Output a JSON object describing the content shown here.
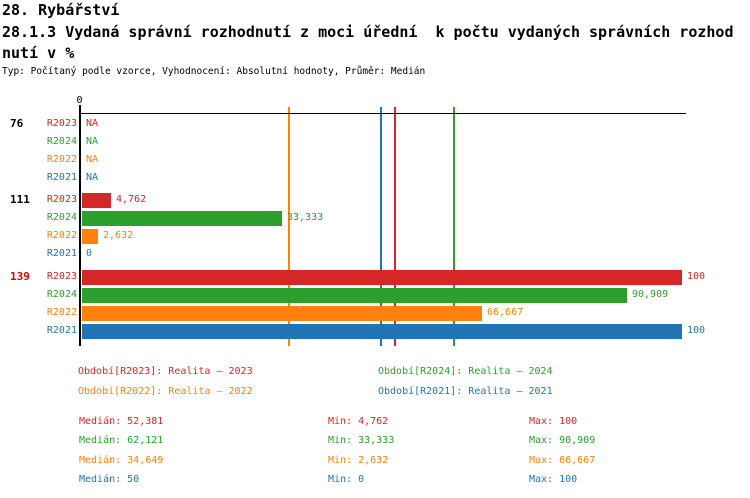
{
  "header": {
    "title_line1": "28. Rybářství",
    "title_line2": "28.1.3 Vydaná správní rozhodnutí z moci úřední  k počtu vydaných správních rozhod",
    "title_line3": "nutí v %",
    "meta": "Typ: Počítaný podle vzorce, Vyhodnocení: Absolutní hodnoty, Průměr: Medián"
  },
  "colors": {
    "series": {
      "R2023": "#d62728",
      "R2024": "#2ca02c",
      "R2022": "#ff810e",
      "R2021": "#2374b5"
    },
    "group_labels": [
      "#000000",
      "#000000",
      "#e00000"
    ],
    "axis": "#000000"
  },
  "chart_data": {
    "type": "bar",
    "orientation": "horizontal",
    "unit": "%",
    "x_axis": {
      "origin_label": "0",
      "xlim": [
        0,
        100
      ],
      "grid": false
    },
    "series_order": [
      "R2023",
      "R2024",
      "R2022",
      "R2021"
    ],
    "groups": [
      {
        "label": "76",
        "rows": [
          {
            "series": "R2023",
            "value": null,
            "display": "NA"
          },
          {
            "series": "R2024",
            "value": null,
            "display": "NA"
          },
          {
            "series": "R2022",
            "value": null,
            "display": "NA"
          },
          {
            "series": "R2021",
            "value": null,
            "display": "NA"
          }
        ]
      },
      {
        "label": "111",
        "rows": [
          {
            "series": "R2023",
            "value": 4.762,
            "display": "4,762"
          },
          {
            "series": "R2024",
            "value": 33.333,
            "display": "33,333"
          },
          {
            "series": "R2022",
            "value": 2.632,
            "display": "2,632"
          },
          {
            "series": "R2021",
            "value": 0,
            "display": "0"
          }
        ]
      },
      {
        "label": "139",
        "rows": [
          {
            "series": "R2023",
            "value": 100,
            "display": "100"
          },
          {
            "series": "R2024",
            "value": 90.909,
            "display": "90,909"
          },
          {
            "series": "R2022",
            "value": 66.667,
            "display": "66,667"
          },
          {
            "series": "R2021",
            "value": 100,
            "display": "100"
          }
        ]
      }
    ],
    "medians": [
      {
        "series": "R2022",
        "value": 34.649
      },
      {
        "series": "R2021",
        "value": 50
      },
      {
        "series": "R2023",
        "value": 52.381
      },
      {
        "series": "R2024",
        "value": 62.121
      }
    ],
    "summary": [
      {
        "series": "R2023",
        "median": 52.381,
        "min": 4.762,
        "max": 100
      },
      {
        "series": "R2024",
        "median": 62.121,
        "min": 33.333,
        "max": 90.909
      },
      {
        "series": "R2022",
        "median": 34.649,
        "min": 2.632,
        "max": 66.667
      },
      {
        "series": "R2021",
        "median": 50,
        "min": 0,
        "max": 100
      }
    ]
  },
  "legend": {
    "items": [
      {
        "series": "R2023",
        "text": "Období[R2023]: Realita – 2023"
      },
      {
        "series": "R2024",
        "text": "Období[R2024]: Realita – 2024"
      },
      {
        "series": "R2022",
        "text": "Období[R2022]: Realita – 2022"
      },
      {
        "series": "R2021",
        "text": "Období[R2021]: Realita – 2021"
      }
    ]
  },
  "stats": {
    "rows": [
      {
        "series": "R2023",
        "median": "Medián: 52,381",
        "min": "Min: 4,762",
        "max": "Max: 100"
      },
      {
        "series": "R2024",
        "median": "Medián: 62,121",
        "min": "Min: 33,333",
        "max": "Max: 90,909"
      },
      {
        "series": "R2022",
        "median": "Medián: 34,649",
        "min": "Min: 2,632",
        "max": "Max: 66,667"
      },
      {
        "series": "R2021",
        "median": "Medián: 50",
        "min": "Min: 0",
        "max": "Max: 100"
      }
    ]
  }
}
